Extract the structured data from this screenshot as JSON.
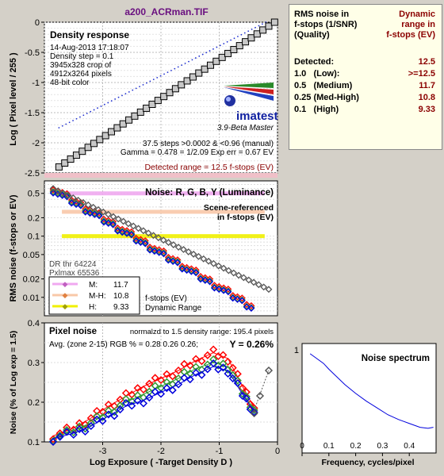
{
  "header": {
    "file_title": "a200_ACRman.TIF"
  },
  "colors": {
    "bg": "#d4d0c8",
    "gray_patch": "#c8c8c8",
    "red": "#ff0000",
    "green": "#339933",
    "blue": "#0000dd",
    "dark": "#555555",
    "m_band": "#f0a8f0",
    "mh_band": "#f8c8a8",
    "h_band": "#f0f000",
    "dr_text": "#8b0000"
  },
  "density": {
    "title": "Density response",
    "info_lines": [
      "14-Aug-2013 17:18:07",
      "Density step = 0.1",
      "3945x328 crop of",
      "4912x3264 pixels",
      "48-bit color"
    ],
    "logo_text": "imatest",
    "version_text": "3.9-Beta  Master",
    "steps_text": "37.5 steps >0.0002 & <0.96 (manual)",
    "gamma_text": "Gamma = 0.478 = 1/2.09  Exp err = 0.67 EV",
    "detected_range_text": "Detected range = 12.5 f-stops (EV)",
    "y_axis_label": "Log ( Pixel level / 255 )"
  },
  "noise_panel": {
    "title": "Noise: R, G, B, Y (Luminance)",
    "scene_label_1": "Scene-referenced",
    "scene_label_2": "in f-stops (EV)",
    "dr_thr_text": "DR thr 64224",
    "pxl_max_text": "Pxlmax 65536",
    "legend": [
      {
        "label": "M:",
        "value": "11.7",
        "color": "#f0a8f0"
      },
      {
        "label": "M-H:",
        "value": "10.8",
        "color": "#f8c8a8"
      },
      {
        "label": "H:",
        "value": "9.33",
        "color": "#f0f000"
      }
    ],
    "fstops_label_1": "f-stops (EV)",
    "fstops_label_2": "Dynamic Range",
    "y_axis_label": "RMS noise (f-stops or EV)"
  },
  "pixel_noise": {
    "title": "Pixel noise",
    "norm_text": "normalzd to 1.5 density range: 195.4 pixels",
    "avg_text": "Avg. (zone 2-15) RGB % = 0.28  0.26  0.26;",
    "y_text": "Y = 0.26%",
    "y_axis_label": "Noise (% of Log exp = 1.5)",
    "x_axis_label": "Log Exposure ( -Target Density D )"
  },
  "spectrum": {
    "title": "Noise spectrum",
    "x_axis_label": "Frequency, cycles/pixel"
  },
  "summary": {
    "header_left_lines": [
      "RMS noise in",
      "f-stops (1/SNR)",
      "(Quality)"
    ],
    "header_right_lines": [
      "Dynamic",
      "range in",
      "f-stops (EV)"
    ],
    "rows": [
      {
        "label": "Detected:",
        "value": "12.5"
      },
      {
        "label": "1.0   (Low):",
        "value": ">=12.5"
      },
      {
        "label": "0.5   (Medium)",
        "value": "11.7"
      },
      {
        "label": "0.25 (Med-High)",
        "value": "10.8"
      },
      {
        "label": "0.1   (High)",
        "value": "9.33"
      }
    ]
  },
  "chart_data": [
    {
      "type": "scatter",
      "name": "density_response",
      "xlim": [
        -4,
        0
      ],
      "ylim": [
        -2.5,
        0
      ],
      "x_ticks": [
        -4,
        -3,
        -2,
        -1,
        0
      ],
      "y_ticks": [
        0,
        -0.5,
        -1,
        -1.5,
        -2,
        -2.5
      ],
      "y_tick_labels": [
        "0",
        "-0.5",
        "-1",
        "-1.5",
        "-2",
        "-2.5"
      ],
      "measured": {
        "x_start": -3.75,
        "x_end": -0.05,
        "count": 38,
        "y_start": -2.4,
        "y_end": 0.0
      },
      "fit": {
        "x_start": -3.75,
        "x_end": -0.2,
        "y_start": -1.75,
        "y_end": 0.0
      },
      "gridlines": true
    },
    {
      "type": "scatter",
      "name": "rms_noise_fstops",
      "scale": "log",
      "xlim": [
        -4,
        0
      ],
      "ylim": [
        0.005,
        0.8
      ],
      "y_ticks": [
        0.5,
        0.2,
        0.1,
        0.05,
        0.02,
        0.01
      ],
      "y_tick_labels": [
        "0.5",
        "0.2",
        "0.1",
        "0.05",
        "0.02",
        "0.01"
      ],
      "bands": [
        {
          "level": 0.5,
          "x_end": -0.22
        },
        {
          "level": 0.25,
          "x_end": -0.22
        },
        {
          "level": 0.1,
          "x_end": -0.22
        }
      ],
      "series": [
        {
          "name": "R",
          "x_start": -3.85,
          "x_end": -0.45,
          "y_start": 0.62,
          "y_end": 0.0075
        },
        {
          "name": "G",
          "x_start": -3.85,
          "x_end": -0.45,
          "y_start": 0.58,
          "y_end": 0.007
        },
        {
          "name": "B",
          "x_start": -3.85,
          "x_end": -0.45,
          "y_start": 0.55,
          "y_end": 0.0068
        },
        {
          "name": "Y",
          "x_start": -3.85,
          "x_end": -0.15,
          "y_start": 0.6,
          "y_end": 0.0135
        }
      ],
      "gridlines": true
    },
    {
      "type": "line",
      "name": "pixel_noise",
      "xlim": [
        -4,
        0
      ],
      "ylim": [
        0.1,
        0.4
      ],
      "x_ticks": [
        -3,
        -2,
        -1,
        0
      ],
      "x_tick_labels": [
        "-3",
        "-2",
        "-1",
        "0"
      ],
      "y_ticks": [
        0.4,
        0.3,
        0.2,
        0.1
      ],
      "y_tick_labels": [
        "0.4",
        "0.3",
        "0.2",
        "0.1"
      ],
      "series": [
        {
          "name": "R",
          "x": [
            -3.85,
            -3.5,
            -3.2,
            -2.9,
            -2.6,
            -2.3,
            -2.0,
            -1.7,
            -1.4,
            -1.1,
            -0.85,
            -0.6,
            -0.4
          ],
          "y": [
            0.115,
            0.135,
            0.16,
            0.19,
            0.215,
            0.24,
            0.26,
            0.28,
            0.305,
            0.325,
            0.31,
            0.24,
            0.185
          ]
        },
        {
          "name": "G",
          "x": [
            -3.85,
            -3.5,
            -3.2,
            -2.9,
            -2.6,
            -2.3,
            -2.0,
            -1.7,
            -1.4,
            -1.1,
            -0.85,
            -0.6,
            -0.4
          ],
          "y": [
            0.11,
            0.128,
            0.148,
            0.175,
            0.2,
            0.22,
            0.24,
            0.26,
            0.285,
            0.3,
            0.29,
            0.225,
            0.18
          ]
        },
        {
          "name": "B",
          "x": [
            -3.85,
            -3.5,
            -3.2,
            -2.9,
            -2.6,
            -2.3,
            -2.0,
            -1.7,
            -1.4,
            -1.1,
            -0.85,
            -0.6,
            -0.4
          ],
          "y": [
            0.108,
            0.122,
            0.14,
            0.165,
            0.19,
            0.205,
            0.225,
            0.245,
            0.27,
            0.29,
            0.28,
            0.22,
            0.175
          ]
        },
        {
          "name": "Y",
          "x": [
            -0.4,
            -0.3,
            -0.15
          ],
          "y": [
            0.18,
            0.22,
            0.28
          ]
        }
      ],
      "gridlines": true
    },
    {
      "type": "line",
      "name": "noise_spectrum",
      "xlim": [
        0,
        0.5
      ],
      "x_ticks": [
        0,
        0.1,
        0.2,
        0.3,
        0.4
      ],
      "x_tick_labels": [
        "0",
        "0.1",
        "0.2",
        "0.3",
        "0.4"
      ],
      "y_ticks": [
        1
      ],
      "y_tick_labels": [
        "1"
      ],
      "ylim": [
        0,
        1
      ],
      "x": [
        0.03,
        0.05,
        0.08,
        0.1,
        0.13,
        0.16,
        0.2,
        0.24,
        0.28,
        0.32,
        0.36,
        0.4,
        0.44,
        0.47,
        0.49
      ],
      "y": [
        0.96,
        0.92,
        0.86,
        0.8,
        0.72,
        0.64,
        0.55,
        0.47,
        0.4,
        0.33,
        0.28,
        0.24,
        0.2,
        0.19,
        0.2
      ]
    }
  ]
}
